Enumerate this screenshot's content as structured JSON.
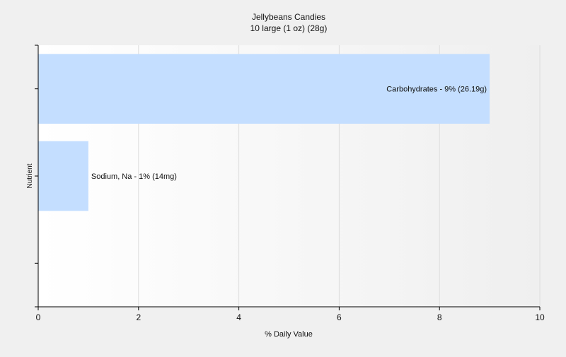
{
  "chart_data": {
    "type": "bar",
    "orientation": "horizontal",
    "title": "Jellybeans Candies",
    "subtitle": "10 large (1 oz) (28g)",
    "xlabel": "% Daily Value",
    "ylabel": "Nutrient",
    "xlim": [
      0,
      10
    ],
    "x_ticks": [
      0,
      2,
      4,
      6,
      8,
      10
    ],
    "grid": true,
    "legend": "none",
    "categories": [
      "Carbohydrates",
      "Sodium, Na"
    ],
    "values": [
      9,
      1
    ],
    "bar_labels": [
      "Carbohydrates - 9% (26.19g)",
      "Sodium, Na - 1% (14mg)"
    ],
    "bar_color": "#c4deff",
    "background_color": "#f0f0f0",
    "plot_background": "gradient-white-to-light-gray"
  }
}
